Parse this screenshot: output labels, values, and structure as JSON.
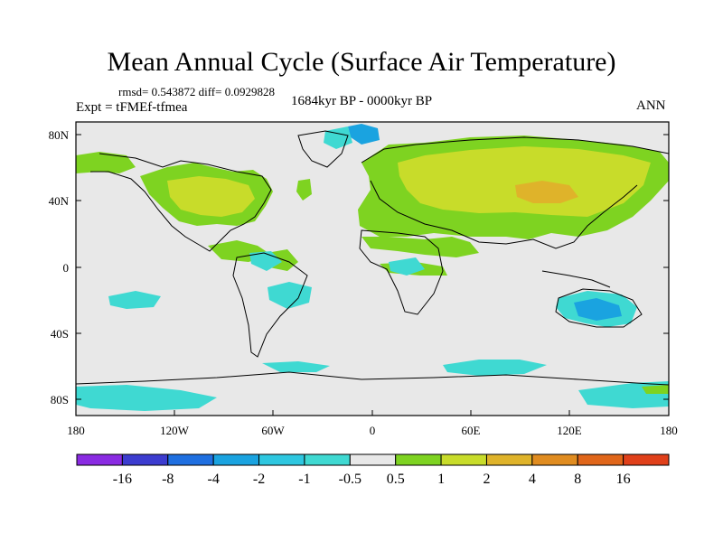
{
  "title": "Mean Annual Cycle (Surface Air Temperature)",
  "stats": "rmsd= 0.543872 diff= 0.0929828",
  "experiment": "Expt = tFMEf-tfmea",
  "period": "1684kyr BP - 0000kyr BP",
  "season": "ANN",
  "y_axis_labels": [
    "80N",
    "40N",
    "0",
    "40S",
    "80S"
  ],
  "x_axis_labels": [
    "180",
    "120W",
    "60W",
    "0",
    "60E",
    "120E",
    "180"
  ],
  "colorbar": {
    "colors": [
      "#8a2be2",
      "#3c3ccf",
      "#1f6fe0",
      "#1aa3e0",
      "#2ec7e0",
      "#3fd9d2",
      "#e8e8e8",
      "#7ed321",
      "#c8dc2a",
      "#dfb32a",
      "#e08c20",
      "#e0661a",
      "#e0401a"
    ],
    "labels": [
      "-16",
      "-8",
      "-4",
      "-2",
      "-1",
      "-0.5",
      "0.5",
      "1",
      "2",
      "4",
      "8",
      "16"
    ]
  },
  "map_colors": {
    "background": "#e8e8e8",
    "light_green": "#7ed321",
    "yellow_green": "#c8dc2a",
    "cyan": "#3fd9d2",
    "light_blue": "#2ec7e0",
    "blue": "#1aa3e0"
  }
}
